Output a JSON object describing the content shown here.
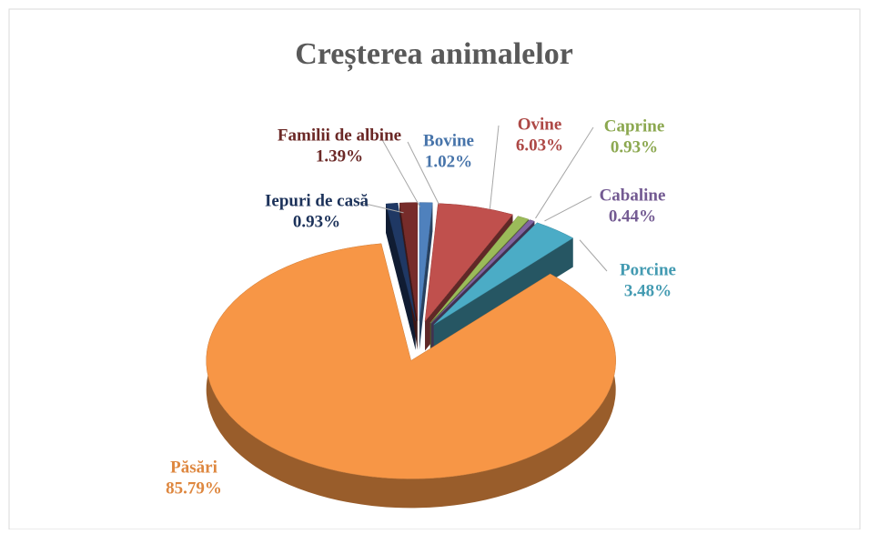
{
  "chart_data": {
    "type": "pie",
    "title": "Creșterea animalelor",
    "categories": [
      "Bovine",
      "Ovine",
      "Caprine",
      "Cabaline",
      "Porcine",
      "Păsări",
      "Iepuri de casă",
      "Familii de albine"
    ],
    "values": [
      1.02,
      6.03,
      0.93,
      0.44,
      3.48,
      85.79,
      0.93,
      1.39
    ],
    "value_labels": [
      "1.02%",
      "6.03%",
      "0.93%",
      "0.44%",
      "3.48%",
      "85.79%",
      "0.93%",
      "1.39%"
    ],
    "colors": [
      "#4f81bd",
      "#c0504d",
      "#9bbb59",
      "#8064a2",
      "#4bacc6",
      "#f79646",
      "#1f3864",
      "#772c2a"
    ]
  }
}
